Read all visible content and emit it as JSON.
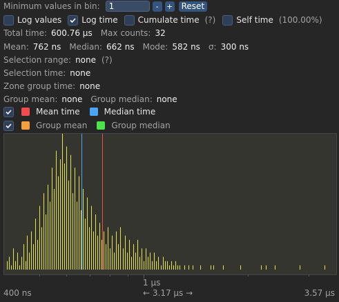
{
  "controls": {
    "min_values_label": "Minimum values in bin:",
    "min_values_value": "1",
    "minus_label": "-",
    "plus_label": "+",
    "reset_label": "Reset"
  },
  "options": {
    "log_values": {
      "label": "Log values",
      "checked": false
    },
    "log_time": {
      "label": "Log time",
      "checked": true
    },
    "cumulate_time": {
      "label": "Cumulate time",
      "checked": false
    },
    "cumulate_help": "(?)",
    "self_time": {
      "label": "Self time",
      "checked": false
    },
    "self_time_pct": "(100.00%)"
  },
  "stats": {
    "total_time_label": "Total time:",
    "total_time_value": "600.76 µs",
    "max_counts_label": "Max counts:",
    "max_counts_value": "32",
    "mean_label": "Mean:",
    "mean_value": "762 ns",
    "median_label": "Median:",
    "median_value": "662 ns",
    "mode_label": "Mode:",
    "mode_value": "582 ns",
    "sigma_label": "σ:",
    "sigma_value": "300 ns",
    "selection_range_label": "Selection range:",
    "selection_range_value": "none",
    "selection_range_help": "(?)",
    "selection_time_label": "Selection time:",
    "selection_time_value": "none",
    "zone_group_time_label": "Zone group time:",
    "zone_group_time_value": "none",
    "group_mean_label": "Group mean:",
    "group_mean_value": "none",
    "group_median_label": "Group median:",
    "group_median_value": "none"
  },
  "legend": {
    "mean_time": {
      "label": "Mean time",
      "color": "#f24c4c",
      "checked": true
    },
    "median_time": {
      "label": "Median time",
      "color": "#4ca5f2"
    },
    "group_mean": {
      "label": "Group mean",
      "color": "#f5a03c",
      "checked": true
    },
    "group_median": {
      "label": "Group median",
      "color": "#4ce24c"
    }
  },
  "axis": {
    "min_label": "400 ns",
    "mid_label": "1 µs",
    "range_label": "← 3.17 µs →",
    "max_label": "3.57 µs"
  },
  "chart_data": {
    "type": "bar",
    "xscale": "log",
    "xlim_ns": [
      400,
      3570
    ],
    "ymax_counts": 32,
    "mean_ns": 762,
    "median_ns": 662,
    "bar_color": "#e6e64c",
    "mean_color": "#f24c4c",
    "median_color": "#4ca5f2",
    "bins": [
      {
        "x_ns": 404,
        "count": 2
      },
      {
        "x_ns": 409,
        "count": 3
      },
      {
        "x_ns": 415,
        "count": 1
      },
      {
        "x_ns": 420,
        "count": 5
      },
      {
        "x_ns": 426,
        "count": 2
      },
      {
        "x_ns": 432,
        "count": 4
      },
      {
        "x_ns": 438,
        "count": 1
      },
      {
        "x_ns": 444,
        "count": 3
      },
      {
        "x_ns": 450,
        "count": 6
      },
      {
        "x_ns": 456,
        "count": 2
      },
      {
        "x_ns": 462,
        "count": 8
      },
      {
        "x_ns": 468,
        "count": 4
      },
      {
        "x_ns": 474,
        "count": 9
      },
      {
        "x_ns": 481,
        "count": 6
      },
      {
        "x_ns": 487,
        "count": 12
      },
      {
        "x_ns": 494,
        "count": 7
      },
      {
        "x_ns": 501,
        "count": 15
      },
      {
        "x_ns": 508,
        "count": 10
      },
      {
        "x_ns": 515,
        "count": 18
      },
      {
        "x_ns": 522,
        "count": 13
      },
      {
        "x_ns": 529,
        "count": 20
      },
      {
        "x_ns": 536,
        "count": 16
      },
      {
        "x_ns": 544,
        "count": 24
      },
      {
        "x_ns": 551,
        "count": 19
      },
      {
        "x_ns": 559,
        "count": 28
      },
      {
        "x_ns": 566,
        "count": 22
      },
      {
        "x_ns": 574,
        "count": 26
      },
      {
        "x_ns": 582,
        "count": 32
      },
      {
        "x_ns": 590,
        "count": 25
      },
      {
        "x_ns": 598,
        "count": 29
      },
      {
        "x_ns": 607,
        "count": 21
      },
      {
        "x_ns": 615,
        "count": 27
      },
      {
        "x_ns": 624,
        "count": 18
      },
      {
        "x_ns": 632,
        "count": 24
      },
      {
        "x_ns": 641,
        "count": 16
      },
      {
        "x_ns": 650,
        "count": 22
      },
      {
        "x_ns": 659,
        "count": 14
      },
      {
        "x_ns": 668,
        "count": 19
      },
      {
        "x_ns": 678,
        "count": 12
      },
      {
        "x_ns": 687,
        "count": 17
      },
      {
        "x_ns": 697,
        "count": 10
      },
      {
        "x_ns": 706,
        "count": 15
      },
      {
        "x_ns": 716,
        "count": 9
      },
      {
        "x_ns": 726,
        "count": 13
      },
      {
        "x_ns": 736,
        "count": 8
      },
      {
        "x_ns": 747,
        "count": 11
      },
      {
        "x_ns": 757,
        "count": 7
      },
      {
        "x_ns": 768,
        "count": 9
      },
      {
        "x_ns": 779,
        "count": 6
      },
      {
        "x_ns": 790,
        "count": 10
      },
      {
        "x_ns": 801,
        "count": 5
      },
      {
        "x_ns": 812,
        "count": 8
      },
      {
        "x_ns": 823,
        "count": 4
      },
      {
        "x_ns": 835,
        "count": 9
      },
      {
        "x_ns": 847,
        "count": 6
      },
      {
        "x_ns": 858,
        "count": 10
      },
      {
        "x_ns": 871,
        "count": 5
      },
      {
        "x_ns": 883,
        "count": 8
      },
      {
        "x_ns": 895,
        "count": 4
      },
      {
        "x_ns": 908,
        "count": 7
      },
      {
        "x_ns": 921,
        "count": 3
      },
      {
        "x_ns": 934,
        "count": 6
      },
      {
        "x_ns": 947,
        "count": 4
      },
      {
        "x_ns": 960,
        "count": 7
      },
      {
        "x_ns": 974,
        "count": 3
      },
      {
        "x_ns": 988,
        "count": 5
      },
      {
        "x_ns": 1002,
        "count": 2
      },
      {
        "x_ns": 1016,
        "count": 5
      },
      {
        "x_ns": 1030,
        "count": 3
      },
      {
        "x_ns": 1045,
        "count": 4
      },
      {
        "x_ns": 1060,
        "count": 2
      },
      {
        "x_ns": 1075,
        "count": 4
      },
      {
        "x_ns": 1090,
        "count": 2
      },
      {
        "x_ns": 1105,
        "count": 3
      },
      {
        "x_ns": 1121,
        "count": 1
      },
      {
        "x_ns": 1137,
        "count": 3
      },
      {
        "x_ns": 1153,
        "count": 2
      },
      {
        "x_ns": 1170,
        "count": 2
      },
      {
        "x_ns": 1186,
        "count": 1
      },
      {
        "x_ns": 1203,
        "count": 2
      },
      {
        "x_ns": 1220,
        "count": 1
      },
      {
        "x_ns": 1238,
        "count": 2
      },
      {
        "x_ns": 1255,
        "count": 1
      },
      {
        "x_ns": 1273,
        "count": 1
      },
      {
        "x_ns": 1310,
        "count": 1
      },
      {
        "x_ns": 1348,
        "count": 1
      },
      {
        "x_ns": 1387,
        "count": 1
      },
      {
        "x_ns": 1460,
        "count": 1
      },
      {
        "x_ns": 1560,
        "count": 1
      },
      {
        "x_ns": 1590,
        "count": 1
      },
      {
        "x_ns": 1700,
        "count": 1
      },
      {
        "x_ns": 1900,
        "count": 1
      },
      {
        "x_ns": 2180,
        "count": 1
      },
      {
        "x_ns": 2260,
        "count": 1
      },
      {
        "x_ns": 2400,
        "count": 1
      },
      {
        "x_ns": 2820,
        "count": 1
      },
      {
        "x_ns": 3340,
        "count": 1
      }
    ]
  }
}
